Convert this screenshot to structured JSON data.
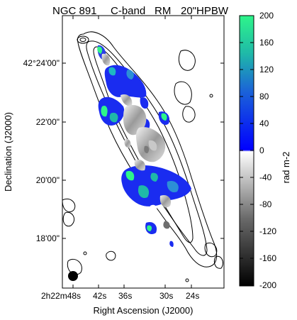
{
  "figure": {
    "title_parts": [
      "NGC 891",
      "C-band",
      "RM",
      "20\"HPBW"
    ],
    "x_axis_label": "Right Ascension (J2000)",
    "y_axis_label": "Declination (J2000)",
    "colorbar_label": "rad m-2",
    "x_ticks": [
      "2h22m48s",
      "42s",
      "36s",
      "30s",
      "24s"
    ],
    "y_ticks": [
      "42°24'00\"",
      "22'00\"",
      "20'00\"",
      "18'00\""
    ],
    "colorbar_ticks": [
      "200",
      "160",
      "120",
      "80",
      "40",
      "0",
      "-40",
      "-80",
      "-120",
      "-160",
      "-200"
    ],
    "colorbar_range": [
      -200,
      200
    ],
    "colorscale": {
      "positive": [
        "#0000ff",
        "#00ffff",
        "#2ef58a"
      ],
      "negative": [
        "#ffffff",
        "#808080",
        "#000000"
      ]
    },
    "beam": "filled black circle, lower-left corner"
  }
}
